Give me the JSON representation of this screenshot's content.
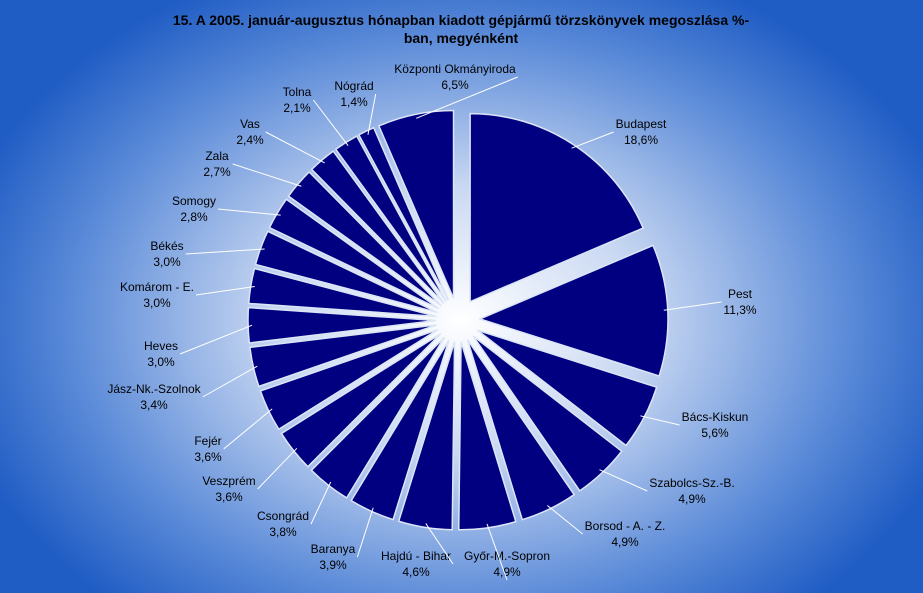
{
  "chart_data": {
    "type": "pie",
    "title": "15. A  2005. január-augusztus hónapban kiadott gépjármű törzskönyvek megoszlása %-ban, megyénként",
    "color": "#000080",
    "categories": [
      "Budapest",
      "Pest",
      "Bács-Kiskun",
      "Szabolcs-Sz.-B.",
      "Borsod - A. - Z.",
      "Győr-M.-Sopron",
      "Hajdú - Bihar",
      "Baranya",
      "Csongrád",
      "Veszprém",
      "Fejér",
      "Jász-Nk.-Szolnok",
      "Heves",
      "Komárom - E.",
      "Békés",
      "Somogy",
      "Zala",
      "Vas",
      "Tolna",
      "Nógrád",
      "Központi Okmányiroda"
    ],
    "values": [
      18.6,
      11.3,
      5.6,
      4.9,
      4.9,
      4.9,
      4.6,
      3.9,
      3.8,
      3.6,
      3.6,
      3.4,
      3.0,
      3.0,
      3.0,
      2.8,
      2.7,
      2.4,
      2.1,
      1.4,
      6.5
    ],
    "value_labels": [
      "18,6%",
      "11,3%",
      "5,6%",
      "4,9%",
      "4,9%",
      "4,9%",
      "4,6%",
      "3,9%",
      "3,8%",
      "3,6%",
      "3,6%",
      "3,4%",
      "3,0%",
      "3,0%",
      "3,0%",
      "2,8%",
      "2,7%",
      "2,4%",
      "2,1%",
      "1,4%",
      "6,5%"
    ]
  }
}
